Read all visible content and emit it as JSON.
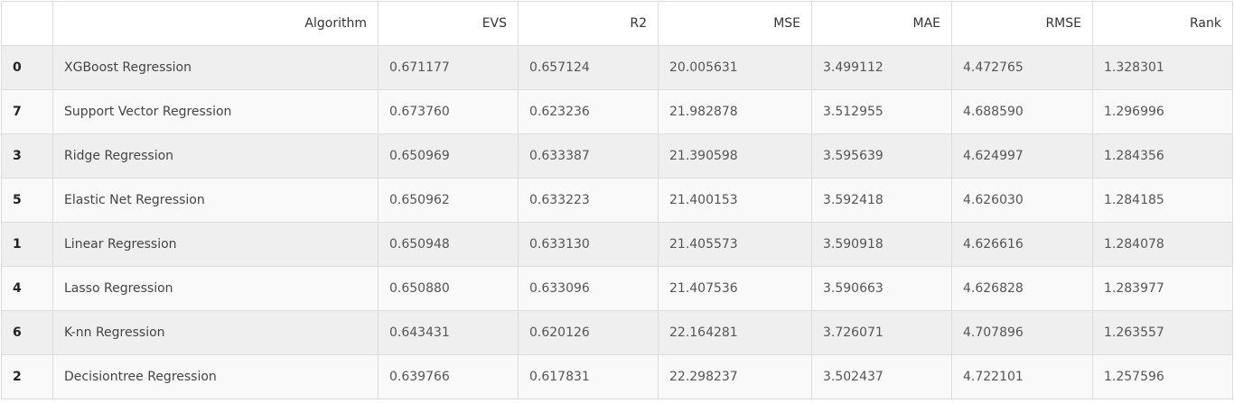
{
  "table": {
    "columns": {
      "index": "",
      "algorithm": "Algorithm",
      "evs": "EVS",
      "r2": "R2",
      "mse": "MSE",
      "mae": "MAE",
      "rmse": "RMSE",
      "rank": "Rank"
    },
    "rows": [
      {
        "index": "0",
        "algorithm": "XGBoost Regression",
        "evs": "0.671177",
        "r2": "0.657124",
        "mse": "20.005631",
        "mae": "3.499112",
        "rmse": "4.472765",
        "rank": "1.328301"
      },
      {
        "index": "7",
        "algorithm": "Support Vector Regression",
        "evs": "0.673760",
        "r2": "0.623236",
        "mse": "21.982878",
        "mae": "3.512955",
        "rmse": "4.688590",
        "rank": "1.296996"
      },
      {
        "index": "3",
        "algorithm": "Ridge Regression",
        "evs": "0.650969",
        "r2": "0.633387",
        "mse": "21.390598",
        "mae": "3.595639",
        "rmse": "4.624997",
        "rank": "1.284356"
      },
      {
        "index": "5",
        "algorithm": "Elastic Net Regression",
        "evs": "0.650962",
        "r2": "0.633223",
        "mse": "21.400153",
        "mae": "3.592418",
        "rmse": "4.626030",
        "rank": "1.284185"
      },
      {
        "index": "1",
        "algorithm": "Linear Regression",
        "evs": "0.650948",
        "r2": "0.633130",
        "mse": "21.405573",
        "mae": "3.590918",
        "rmse": "4.626616",
        "rank": "1.284078"
      },
      {
        "index": "4",
        "algorithm": "Lasso Regression",
        "evs": "0.650880",
        "r2": "0.633096",
        "mse": "21.407536",
        "mae": "3.590663",
        "rmse": "4.626828",
        "rank": "1.283977"
      },
      {
        "index": "6",
        "algorithm": "K-nn Regression",
        "evs": "0.643431",
        "r2": "0.620126",
        "mse": "22.164281",
        "mae": "3.726071",
        "rmse": "4.707896",
        "rank": "1.263557"
      },
      {
        "index": "2",
        "algorithm": "Decisiontree Regression",
        "evs": "0.639766",
        "r2": "0.617831",
        "mse": "22.298237",
        "mae": "3.502437",
        "rmse": "4.722101",
        "rank": "1.257596"
      }
    ]
  }
}
